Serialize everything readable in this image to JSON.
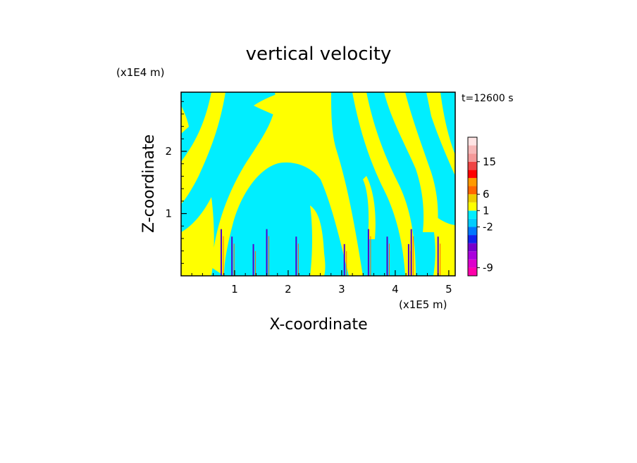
{
  "chart_data": {
    "type": "heatmap",
    "title": "vertical velocity",
    "xlabel": "X-coordinate",
    "ylabel": "Z-coordinate",
    "x_unit": "(x1E5 m)",
    "y_unit": "(x1E4 m)",
    "time_label": "t=12600 s",
    "xlim": [
      0,
      5.12
    ],
    "ylim": [
      0,
      2.95
    ],
    "x_ticks": [
      1,
      2,
      3,
      4,
      5
    ],
    "y_ticks": [
      1,
      2
    ],
    "colorbar": {
      "colors": [
        "#ff00aa",
        "#dd00cc",
        "#aa00dd",
        "#7700cc",
        "#1122ee",
        "#0077ff",
        "#00ccff",
        "#00eeff",
        "#ffff00",
        "#eecc00",
        "#ff6600",
        "#ff9900",
        "#ff0000",
        "#ee4444",
        "#f49999",
        "#f7b8b8",
        "#ffe4e4"
      ],
      "labels": [
        "-9",
        "-2",
        "1",
        "6",
        "15"
      ]
    },
    "dominant_colors": {
      "positive": "#ffff00",
      "negative": "#00eeff"
    }
  }
}
